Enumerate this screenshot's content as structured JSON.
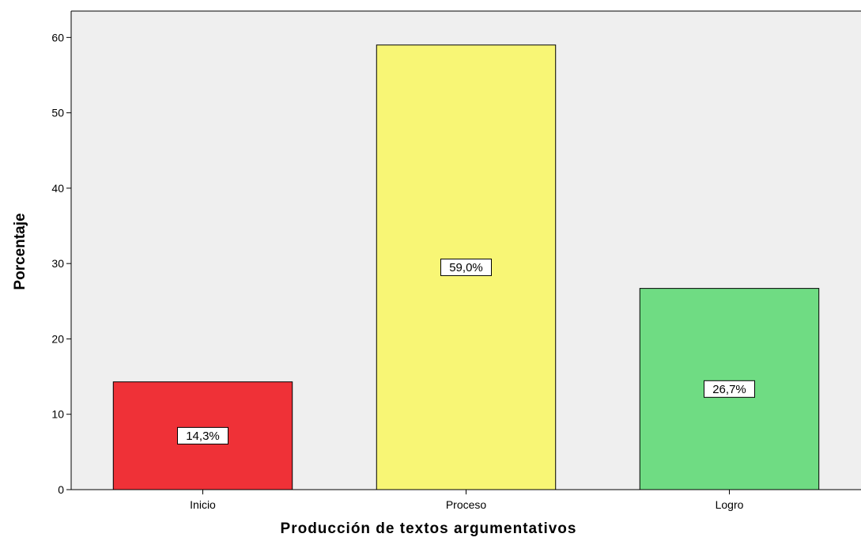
{
  "chart_data": {
    "type": "bar",
    "title": "",
    "xlabel": "Producción de textos argumentativos",
    "ylabel": "Porcentaje",
    "ylim": [
      0,
      63.5
    ],
    "yticks": [
      0,
      10,
      20,
      30,
      40,
      50,
      60
    ],
    "categories": [
      "Inicio",
      "Proceso",
      "Logro"
    ],
    "values": [
      14.3,
      59.0,
      26.7
    ],
    "data_labels": [
      "14,3%",
      "59,0%",
      "26,7%"
    ],
    "bar_colors": [
      "#ef3137",
      "#f8f675",
      "#6fdc83"
    ],
    "plot_background": "#efefef",
    "grid": false,
    "legend": "none"
  }
}
